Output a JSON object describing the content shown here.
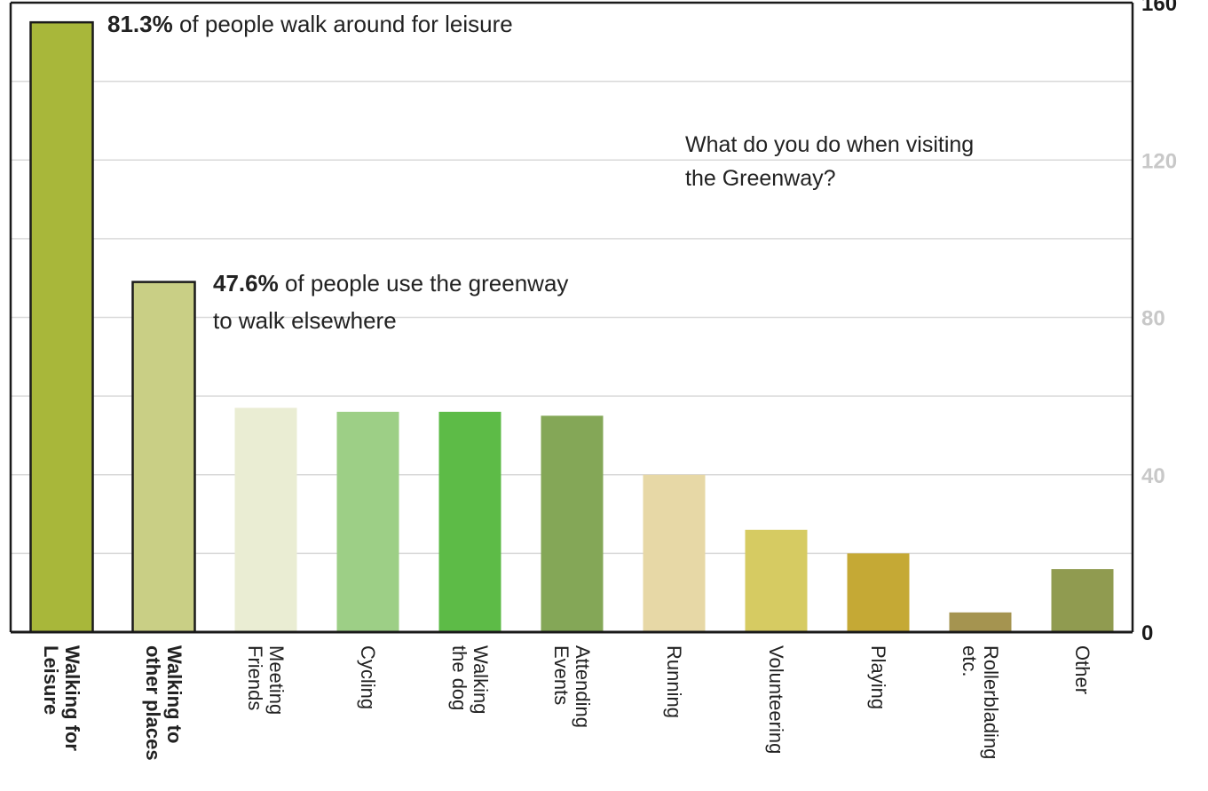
{
  "chart_data": {
    "type": "bar",
    "title": "What do you do when visiting the Greenway?",
    "title_lines": [
      "What do you do when visiting",
      "the Greenway?"
    ],
    "categories": [
      [
        "Walking for",
        "Leisure"
      ],
      [
        "Walking to",
        "other places"
      ],
      [
        "Meeting",
        "Friends"
      ],
      [
        "Cycling"
      ],
      [
        "Walking",
        "the dog"
      ],
      [
        "Attending",
        "Events"
      ],
      [
        "Running"
      ],
      [
        "Volunteering"
      ],
      [
        "Playing"
      ],
      [
        "Rollerblading",
        "etc."
      ],
      [
        "Other"
      ]
    ],
    "values": [
      155,
      89,
      57,
      56,
      56,
      55,
      40,
      26,
      20,
      5,
      16
    ],
    "colors": [
      "#a8b73a",
      "#c9cf85",
      "#eaedd3",
      "#9dcf86",
      "#5dbb47",
      "#84a757",
      "#e7d8a6",
      "#d6cb62",
      "#c5a935",
      "#a59450",
      "#909b50"
    ],
    "outlined": [
      true,
      true,
      false,
      false,
      false,
      false,
      false,
      false,
      false,
      false,
      false
    ],
    "bold_labels": [
      true,
      true,
      false,
      false,
      false,
      false,
      false,
      false,
      false,
      false,
      false
    ],
    "ylim": [
      0,
      160
    ],
    "yticks": [
      0,
      40,
      80,
      120,
      160
    ],
    "y_axis_side": "right",
    "grid": true,
    "grid_step": 20,
    "annotations": [
      {
        "strong": "81.3%",
        "lines": [
          " of people walk around for leisure"
        ]
      },
      {
        "strong": "47.6%",
        "lines": [
          " of people use the greenway",
          "to walk elsewhere"
        ]
      }
    ]
  }
}
